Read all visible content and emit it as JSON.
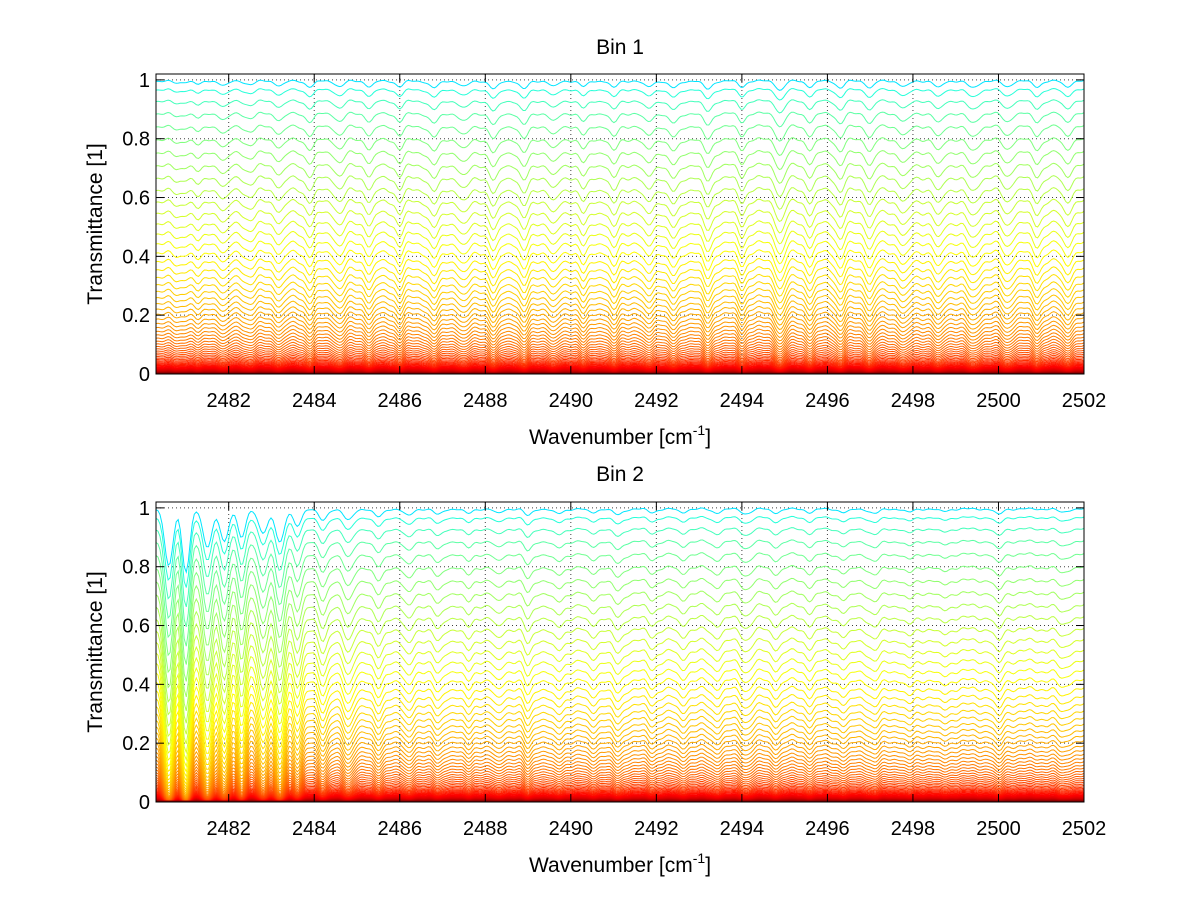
{
  "chart_data": [
    {
      "type": "line",
      "title": "Bin 1",
      "xlabel": "Wavenumber [cm",
      "xlabel_sup": "-1",
      "xlabel_suffix": "]",
      "ylabel": "Transmittance [1]",
      "xlim": [
        2480.3,
        2502
      ],
      "ylim": [
        0,
        1.02
      ],
      "xticks": [
        2482,
        2484,
        2486,
        2488,
        2490,
        2492,
        2494,
        2496,
        2498,
        2500,
        2502
      ],
      "yticks": [
        0,
        0.2,
        0.4,
        0.6,
        0.8,
        1
      ],
      "ytick_labels": [
        "0",
        "0.2",
        "0.4",
        "0.6",
        "0.8",
        "1"
      ],
      "grid": "on",
      "line_count": 72,
      "colormap": "jet",
      "series_note": "72 transmittance spectra from ~1.0 (blue) down to ~0.0 (red); absorption dips deepen with path length",
      "level_range": [
        0.0,
        1.0
      ],
      "absorption_lines": [
        {
          "x": 2480.8,
          "depth": 0.02
        },
        {
          "x": 2481.3,
          "depth": 0.03
        },
        {
          "x": 2481.9,
          "depth": 0.04
        },
        {
          "x": 2482.5,
          "depth": 0.03
        },
        {
          "x": 2483.2,
          "depth": 0.04
        },
        {
          "x": 2483.9,
          "depth": 0.05
        },
        {
          "x": 2484.6,
          "depth": 0.05
        },
        {
          "x": 2485.3,
          "depth": 0.05
        },
        {
          "x": 2486.0,
          "depth": 0.05
        },
        {
          "x": 2486.8,
          "depth": 0.06
        },
        {
          "x": 2487.5,
          "depth": 0.05
        },
        {
          "x": 2488.2,
          "depth": 0.07
        },
        {
          "x": 2488.9,
          "depth": 0.07
        },
        {
          "x": 2489.6,
          "depth": 0.05
        },
        {
          "x": 2490.3,
          "depth": 0.05
        },
        {
          "x": 2491.0,
          "depth": 0.06
        },
        {
          "x": 2491.8,
          "depth": 0.05
        },
        {
          "x": 2492.4,
          "depth": 0.06
        },
        {
          "x": 2493.2,
          "depth": 0.07
        },
        {
          "x": 2494.0,
          "depth": 0.05
        },
        {
          "x": 2494.9,
          "depth": 0.08
        },
        {
          "x": 2495.6,
          "depth": 0.05
        },
        {
          "x": 2496.3,
          "depth": 0.06
        },
        {
          "x": 2497.0,
          "depth": 0.06
        },
        {
          "x": 2497.8,
          "depth": 0.05
        },
        {
          "x": 2498.6,
          "depth": 0.06
        },
        {
          "x": 2499.4,
          "depth": 0.06
        },
        {
          "x": 2500.2,
          "depth": 0.05
        },
        {
          "x": 2500.9,
          "depth": 0.05
        },
        {
          "x": 2501.6,
          "depth": 0.05
        }
      ]
    },
    {
      "type": "line",
      "title": "Bin 2",
      "xlabel": "Wavenumber [cm",
      "xlabel_sup": "-1",
      "xlabel_suffix": "]",
      "ylabel": "Transmittance [1]",
      "xlim": [
        2480.3,
        2502
      ],
      "ylim": [
        0,
        1.02
      ],
      "xticks": [
        2482,
        2484,
        2486,
        2488,
        2490,
        2492,
        2494,
        2496,
        2498,
        2500,
        2502
      ],
      "yticks": [
        0,
        0.2,
        0.4,
        0.6,
        0.8,
        1
      ],
      "ytick_labels": [
        "0",
        "0.2",
        "0.4",
        "0.6",
        "0.8",
        "1"
      ],
      "grid": "on",
      "line_count": 72,
      "colormap": "jet",
      "series_note": "72 transmittance spectra from ~1.0 (blue) down to ~0.0 (red); strong absorption below 2484 cm-1",
      "level_range": [
        0.0,
        1.0
      ],
      "absorption_lines": [
        {
          "x": 2480.6,
          "depth": 0.55
        },
        {
          "x": 2481.0,
          "depth": 0.6
        },
        {
          "x": 2481.5,
          "depth": 0.35
        },
        {
          "x": 2481.9,
          "depth": 0.3
        },
        {
          "x": 2482.3,
          "depth": 0.25
        },
        {
          "x": 2482.8,
          "depth": 0.22
        },
        {
          "x": 2483.2,
          "depth": 0.3
        },
        {
          "x": 2483.6,
          "depth": 0.15
        },
        {
          "x": 2484.2,
          "depth": 0.1
        },
        {
          "x": 2484.8,
          "depth": 0.1
        },
        {
          "x": 2485.5,
          "depth": 0.07
        },
        {
          "x": 2486.2,
          "depth": 0.06
        },
        {
          "x": 2486.9,
          "depth": 0.05
        },
        {
          "x": 2487.6,
          "depth": 0.04
        },
        {
          "x": 2488.3,
          "depth": 0.04
        },
        {
          "x": 2489.0,
          "depth": 0.06
        },
        {
          "x": 2489.7,
          "depth": 0.04
        },
        {
          "x": 2490.5,
          "depth": 0.03
        },
        {
          "x": 2491.1,
          "depth": 0.05
        },
        {
          "x": 2491.9,
          "depth": 0.03
        },
        {
          "x": 2492.6,
          "depth": 0.03
        },
        {
          "x": 2493.4,
          "depth": 0.03
        },
        {
          "x": 2494.1,
          "depth": 0.04
        },
        {
          "x": 2494.8,
          "depth": 0.03
        },
        {
          "x": 2495.6,
          "depth": 0.03
        },
        {
          "x": 2496.4,
          "depth": 0.03
        },
        {
          "x": 2497.1,
          "depth": 0.04
        },
        {
          "x": 2497.9,
          "depth": 0.03
        },
        {
          "x": 2498.7,
          "depth": 0.02
        },
        {
          "x": 2500.0,
          "depth": 0.05
        },
        {
          "x": 2501.5,
          "depth": 0.03
        }
      ]
    }
  ]
}
